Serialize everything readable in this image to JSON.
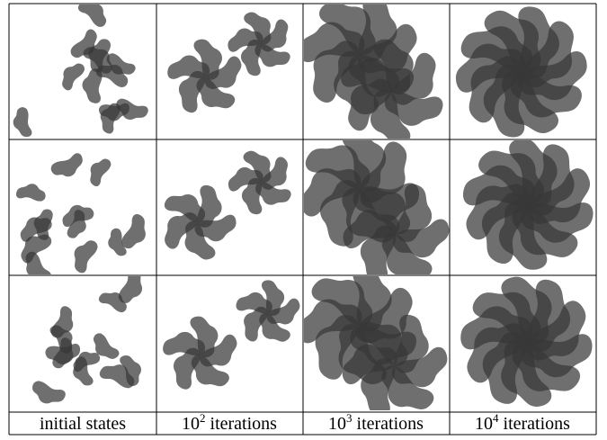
{
  "figure": {
    "columns": [
      {
        "label": "initial states"
      },
      {
        "base": "10",
        "exponent": "2",
        "label": "iterations"
      },
      {
        "base": "10",
        "exponent": "3",
        "label": "iterations"
      },
      {
        "base": "10",
        "exponent": "4",
        "label": "iterations"
      }
    ]
  }
}
